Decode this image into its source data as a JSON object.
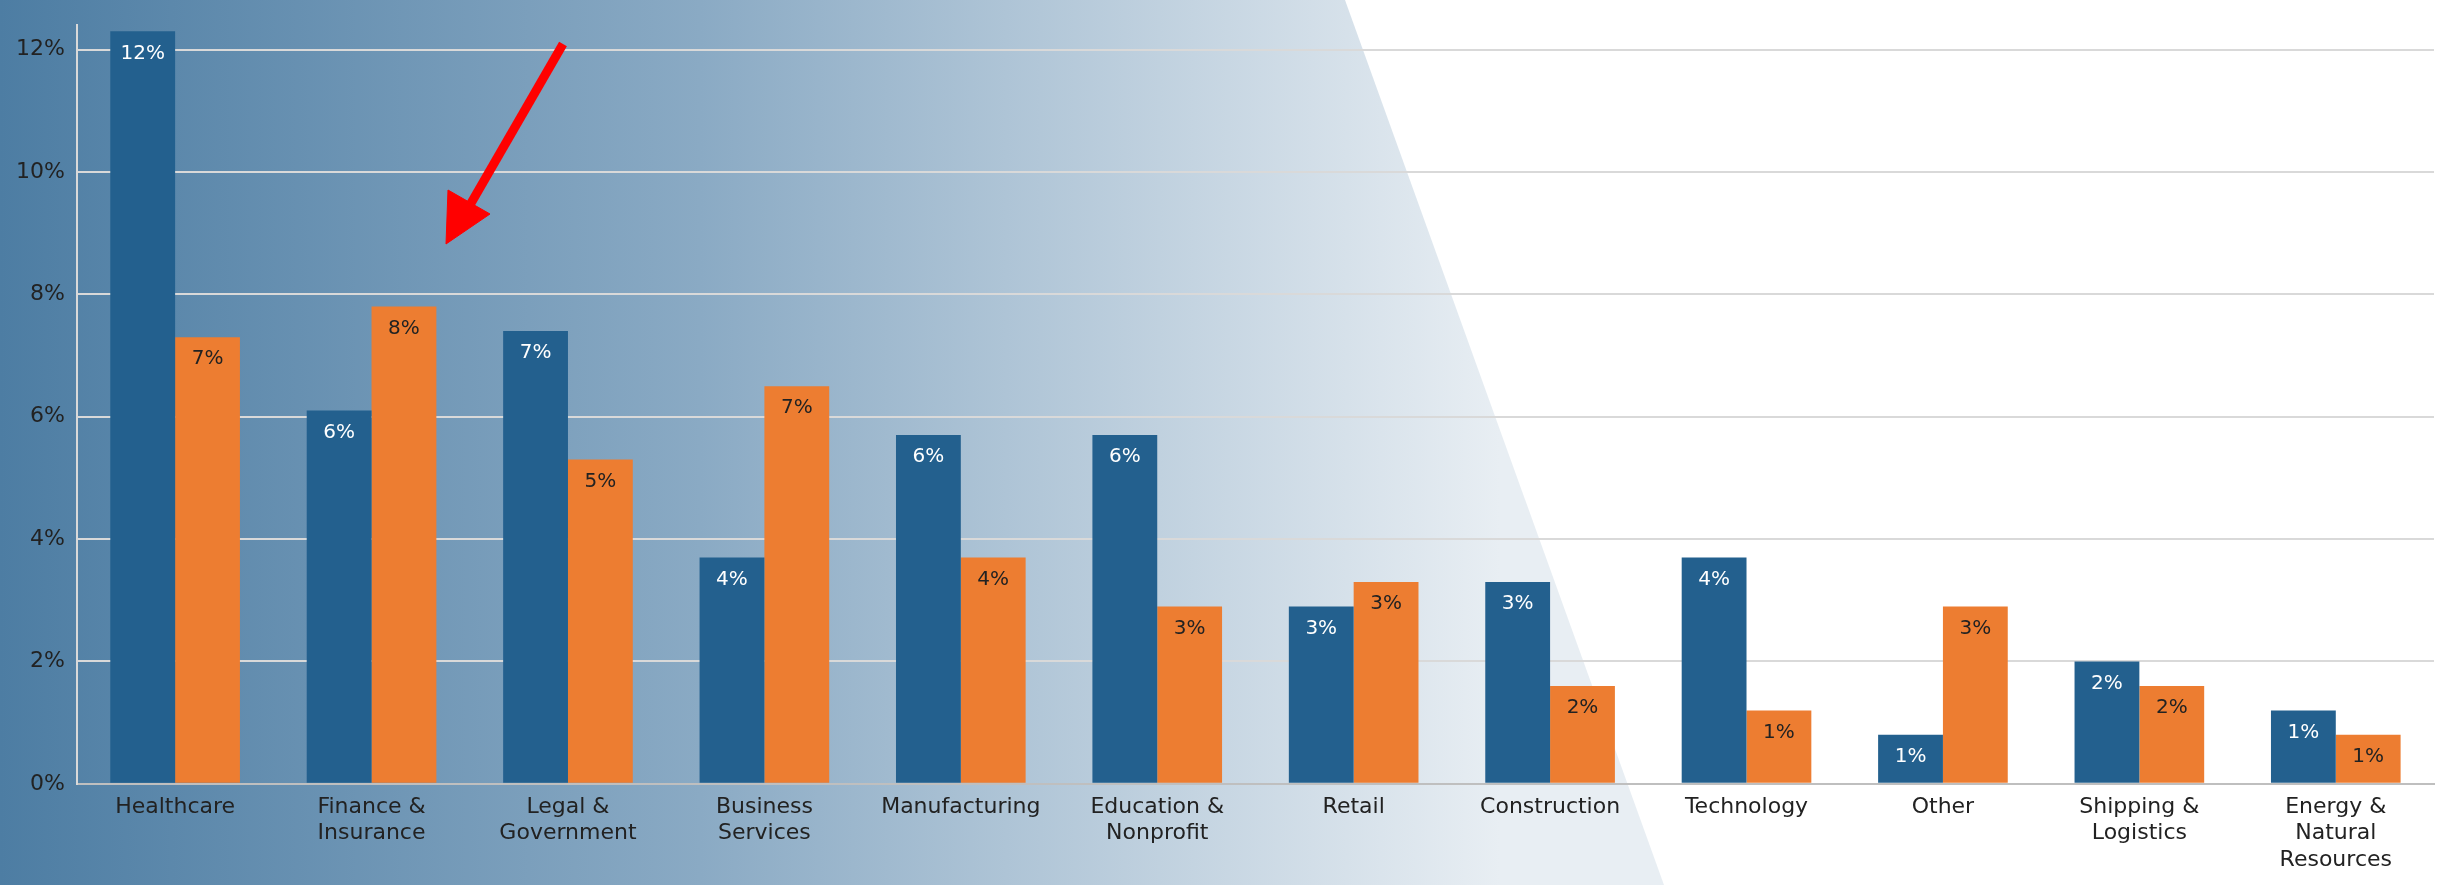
{
  "chart_data": {
    "type": "bar",
    "categories": [
      "Healthcare",
      "Finance &\nInsurance",
      "Legal &\nGovernment",
      "Business\nServices",
      "Manufacturing",
      "Education &\nNonprofit",
      "Retail",
      "Construction",
      "Technology",
      "Other",
      "Shipping &\nLogistics",
      "Energy &\nNatural\nResources"
    ],
    "series": [
      {
        "color": "#23608e",
        "values": [
          12.3,
          6.1,
          7.4,
          3.7,
          5.7,
          5.7,
          2.9,
          3.3,
          3.7,
          0.8,
          2.0,
          1.2
        ],
        "value_labels": [
          "12%",
          "6%",
          "7%",
          "4%",
          "6%",
          "6%",
          "3%",
          "3%",
          "4%",
          "1%",
          "2%",
          "1%"
        ]
      },
      {
        "color": "#ed7d31",
        "values": [
          7.3,
          7.8,
          5.3,
          6.5,
          3.7,
          2.9,
          3.3,
          1.6,
          1.2,
          2.9,
          1.6,
          0.8
        ],
        "value_labels": [
          "7%",
          "8%",
          "5%",
          "7%",
          "4%",
          "3%",
          "3%",
          "2%",
          "1%",
          "3%",
          "2%",
          "1%"
        ]
      }
    ],
    "ylim": [
      0,
      12.4
    ],
    "yticks": [
      {
        "value": 0,
        "label": "0%"
      },
      {
        "value": 2,
        "label": "2%"
      },
      {
        "value": 4,
        "label": "4%"
      },
      {
        "value": 6,
        "label": "6%"
      },
      {
        "value": 8,
        "label": "8%"
      },
      {
        "value": 10,
        "label": "10%"
      },
      {
        "value": 12,
        "label": "12%"
      }
    ],
    "grid": "y",
    "legend": false
  }
}
